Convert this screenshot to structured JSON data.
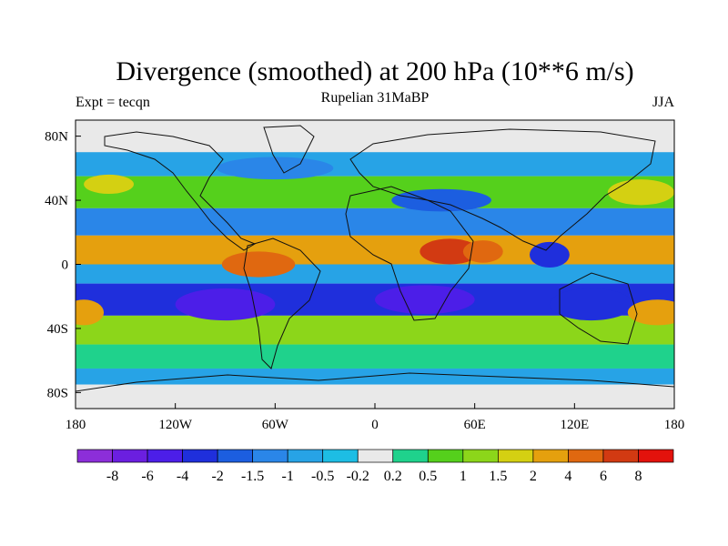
{
  "chart_data": {
    "type": "heatmap",
    "title": "Divergence (smoothed) at 200 hPa (10**6 m/s)",
    "subtitle": "Rupelian  31MaBP",
    "left_label": "Expt = tecqn",
    "right_label": "JJA",
    "x_ticks": [
      "180",
      "120W",
      "60W",
      "0",
      "60E",
      "120E",
      "180"
    ],
    "x_tick_lons": [
      -180,
      -120,
      -60,
      0,
      60,
      120,
      180
    ],
    "y_ticks": [
      "80N",
      "40N",
      "0",
      "40S",
      "80S"
    ],
    "y_tick_lats": [
      80,
      40,
      0,
      -40,
      -80
    ],
    "xlim": [
      -180,
      180
    ],
    "ylim": [
      -90,
      90
    ],
    "colorbar_labels": [
      "-8",
      "-6",
      "-4",
      "-2",
      "-1.5",
      "-1",
      "-0.5",
      "-0.2",
      "0.2",
      "0.5",
      "1",
      "1.5",
      "2",
      "4",
      "6",
      "8"
    ],
    "colorbar_colors": [
      "#8c2ed9",
      "#6b1fe0",
      "#4c1ee8",
      "#1f2fdc",
      "#1c5ee0",
      "#2a86e8",
      "#27a3e6",
      "#1dbde4",
      "#e9e9e9",
      "#1fd28c",
      "#55d01c",
      "#8cd61a",
      "#d4d012",
      "#e5a00e",
      "#e06810",
      "#d23a12",
      "#e3120c"
    ],
    "zonal_bands": [
      {
        "lat_from": 90,
        "lat_to": 70,
        "value": 0.0
      },
      {
        "lat_from": 70,
        "lat_to": 55,
        "value": -0.6
      },
      {
        "lat_from": 55,
        "lat_to": 35,
        "value": 0.8
      },
      {
        "lat_from": 35,
        "lat_to": 18,
        "value": -1.2
      },
      {
        "lat_from": 18,
        "lat_to": 0,
        "value": 2.5
      },
      {
        "lat_from": 0,
        "lat_to": -12,
        "value": -0.8
      },
      {
        "lat_from": -12,
        "lat_to": -32,
        "value": -3.0
      },
      {
        "lat_from": -32,
        "lat_to": -50,
        "value": 1.2
      },
      {
        "lat_from": -50,
        "lat_to": -65,
        "value": 0.4
      },
      {
        "lat_from": -65,
        "lat_to": -75,
        "value": -1.0
      },
      {
        "lat_from": -75,
        "lat_to": -90,
        "value": 0.0
      }
    ],
    "features": [
      {
        "lon": 45,
        "lat": 8,
        "rx": 18,
        "ry": 8,
        "value": 6.0
      },
      {
        "lon": 65,
        "lat": 8,
        "rx": 12,
        "ry": 7,
        "value": 5.0
      },
      {
        "lon": -70,
        "lat": 0,
        "rx": 22,
        "ry": 8,
        "value": 4.0
      },
      {
        "lon": -20,
        "lat": 10,
        "rx": 25,
        "ry": 7,
        "value": 3.0
      },
      {
        "lon": 150,
        "lat": 10,
        "rx": 30,
        "ry": 8,
        "value": 3.0
      },
      {
        "lon": 105,
        "lat": 6,
        "rx": 12,
        "ry": 8,
        "value": -4.0
      },
      {
        "lon": -90,
        "lat": -25,
        "rx": 30,
        "ry": 10,
        "value": -5.0
      },
      {
        "lon": 30,
        "lat": -22,
        "rx": 30,
        "ry": 9,
        "value": -4.5
      },
      {
        "lon": 130,
        "lat": -25,
        "rx": 25,
        "ry": 10,
        "value": -4.0
      },
      {
        "lon": 170,
        "lat": -30,
        "rx": 18,
        "ry": 8,
        "value": 3.0
      },
      {
        "lon": -175,
        "lat": -30,
        "rx": 12,
        "ry": 8,
        "value": 2.0
      },
      {
        "lon": 160,
        "lat": 45,
        "rx": 20,
        "ry": 8,
        "value": 1.5
      },
      {
        "lon": -160,
        "lat": 50,
        "rx": 15,
        "ry": 6,
        "value": 1.5
      },
      {
        "lon": -60,
        "lat": 60,
        "rx": 35,
        "ry": 7,
        "value": -1.5
      },
      {
        "lon": 40,
        "lat": 40,
        "rx": 30,
        "ry": 7,
        "value": -2.0
      }
    ]
  }
}
